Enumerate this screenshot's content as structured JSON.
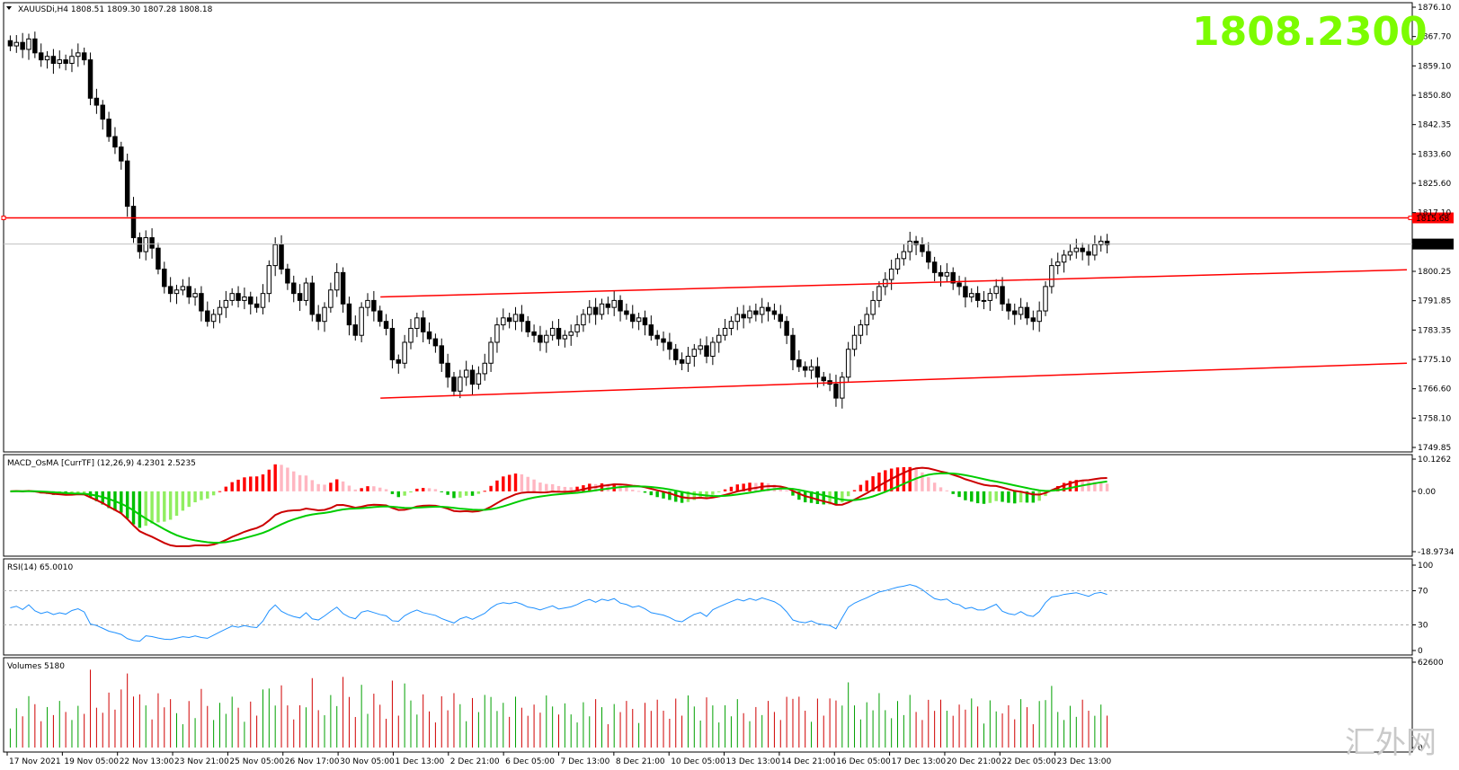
{
  "chart_data": {
    "type": "candlestick",
    "symbol_header": "XAUUSDi,H4  1808.51 1809.30 1807.28 1808.18",
    "big_price": "1808.2300",
    "watermark": "汇外网",
    "colors": {
      "up_candle": "#ffffff",
      "down_candle": "#000000",
      "level_line": "#ff0000",
      "macd_up": "#ff0000",
      "macd_up_weak": "#ffb6c1",
      "macd_down": "#00c000",
      "macd_down_weak": "#90ee60",
      "macd_line": "#cc0000",
      "signal_line": "#00cc00",
      "rsi_line": "#1e90ff",
      "volume_up": "#00a000",
      "volume_down": "#d00000",
      "big_price": "#7CFC00"
    },
    "price_axis": {
      "ylim": [
        1749.85,
        1876.1
      ],
      "ticks": [
        "1876.10",
        "1867.70",
        "1859.10",
        "1850.80",
        "1842.35",
        "1833.60",
        "1825.60",
        "1817.10",
        "1808.18",
        "1800.25",
        "1791.85",
        "1783.35",
        "1775.10",
        "1766.60",
        "1758.10",
        "1749.85"
      ],
      "labels": {
        "level": "1815.68",
        "current": "1808.18"
      }
    },
    "horizontal_level": 1815.68,
    "current_price": 1808.18,
    "channel_upper": {
      "start": [
        64,
        1793.0
      ],
      "end": [
        240,
        1800.8
      ]
    },
    "channel_lower": {
      "start": [
        64,
        1764.0
      ],
      "end": [
        240,
        1774.0
      ]
    },
    "x_ticks": [
      "17 Nov 2021",
      "19 Nov 05:00",
      "22 Nov 13:00",
      "23 Nov 21:00",
      "25 Nov 05:00",
      "26 Nov 17:00",
      "30 Nov 05:00",
      "1 Dec 13:00",
      "2 Dec 21:00",
      "6 Dec 05:00",
      "7 Dec 13:00",
      "8 Dec 21:00",
      "10 Dec 05:00",
      "13 Dec 13:00",
      "14 Dec 21:00",
      "16 Dec 05:00",
      "17 Dec 13:00",
      "20 Dec 21:00",
      "22 Dec 05:00",
      "23 Dec 13:00"
    ],
    "close": [
      1865,
      1866,
      1864,
      1867,
      1863,
      1861,
      1862,
      1860,
      1861,
      1860,
      1862,
      1863,
      1861,
      1850,
      1848,
      1844,
      1839,
      1836,
      1832,
      1819,
      1810,
      1806,
      1810,
      1807,
      1801,
      1796,
      1794,
      1795,
      1796,
      1793,
      1794,
      1789,
      1786,
      1788,
      1790,
      1792,
      1794,
      1792,
      1793,
      1791,
      1790,
      1794,
      1802,
      1808,
      1801,
      1797,
      1794,
      1792,
      1797,
      1788,
      1786,
      1790,
      1795,
      1800,
      1791,
      1785,
      1782,
      1790,
      1792,
      1789,
      1786,
      1784,
      1775,
      1774,
      1780,
      1784,
      1787,
      1783,
      1781,
      1779,
      1774,
      1770,
      1766,
      1770,
      1772,
      1768,
      1771,
      1774,
      1780,
      1785,
      1787,
      1786,
      1788,
      1786,
      1783,
      1782,
      1780,
      1782,
      1784,
      1781,
      1782,
      1783,
      1785,
      1788,
      1790,
      1788,
      1791,
      1790,
      1792,
      1789,
      1788,
      1786,
      1787,
      1785,
      1782,
      1781,
      1780,
      1778,
      1775,
      1774,
      1776,
      1778,
      1779,
      1776,
      1780,
      1782,
      1784,
      1786,
      1788,
      1787,
      1789,
      1788,
      1790,
      1789,
      1788,
      1786,
      1782,
      1775,
      1773,
      1772,
      1773,
      1770,
      1769,
      1768,
      1764,
      1770,
      1778,
      1782,
      1785,
      1788,
      1792,
      1796,
      1798,
      1801,
      1804,
      1806,
      1809,
      1808,
      1806,
      1803,
      1800,
      1799,
      1800,
      1797,
      1796,
      1793,
      1794,
      1792,
      1792,
      1794,
      1796,
      1791,
      1789,
      1788,
      1790,
      1787,
      1786,
      1789,
      1796,
      1802,
      1803,
      1805,
      1806,
      1807,
      1806,
      1805,
      1808,
      1809,
      1808
    ],
    "macd_panel": {
      "title": "MACD_OsMA [CurrTF] (12,26,9) 4.2301 2.5235",
      "ylim": [
        -18.9734,
        10.1262
      ],
      "ticks": [
        "10.1262",
        "0.00",
        "-18.9734"
      ]
    },
    "rsi_panel": {
      "title": "RSI(14) 65.0010",
      "ylim": [
        0,
        100
      ],
      "ticks": [
        "100",
        "70",
        "30",
        "0"
      ],
      "levels": [
        70,
        30
      ]
    },
    "volume_panel": {
      "title": "Volumes 5180",
      "ylim": [
        0,
        62600
      ],
      "ticks": [
        "62600",
        "0"
      ]
    }
  }
}
